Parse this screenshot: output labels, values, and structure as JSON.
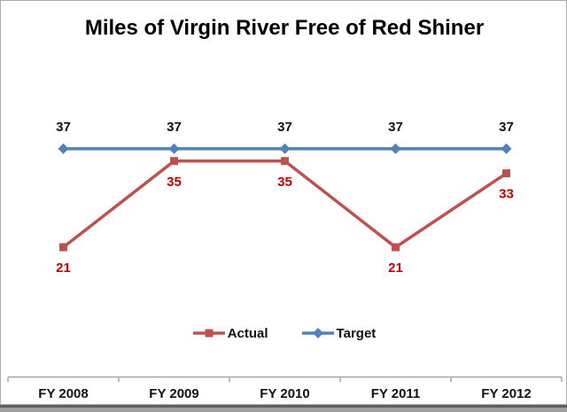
{
  "chart_data": {
    "type": "line",
    "title": "Miles of Virgin River Free of Red Shiner",
    "categories": [
      "FY 2008",
      "FY 2009",
      "FY 2010",
      "FY 2011",
      "FY 2012"
    ],
    "series": [
      {
        "name": "Actual",
        "values": [
          21,
          35,
          35,
          21,
          33
        ],
        "color": "#C0504D",
        "marker": "square",
        "label_color": "#C00000",
        "label_position": "below"
      },
      {
        "name": "Target",
        "values": [
          37,
          37,
          37,
          37,
          37
        ],
        "color": "#4F81BD",
        "marker": "diamond",
        "label_color": "#111111",
        "label_position": "above"
      }
    ],
    "ylim": [
      0,
      44
    ],
    "grid": false,
    "y_axis_visible": false,
    "data_labels": true,
    "legend_position": "bottom",
    "axis_color": "#a6a6a6",
    "text_color": "#111111"
  }
}
